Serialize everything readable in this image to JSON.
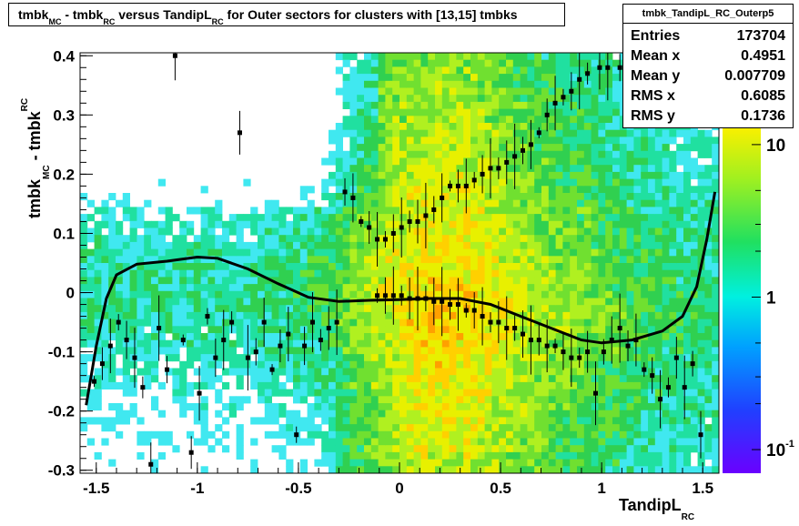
{
  "title": {
    "part1": "tmbk",
    "sub1": "MC",
    "part2": " - tmbk",
    "sub2": "RC",
    "part3": " versus TandipL",
    "sub3": "RC",
    "part4": " for Outer sectors for clusters with [13,15] tmbks"
  },
  "stats": {
    "name": "tmbk_TandipL_RC_Outerp5",
    "rows": [
      {
        "label": "Entries",
        "value": "173704"
      },
      {
        "label": "Mean x",
        "value": "0.4951"
      },
      {
        "label": "Mean y",
        "value": "0.007709"
      },
      {
        "label": "RMS x",
        "value": "0.6085"
      },
      {
        "label": "RMS y",
        "value": "0.1736"
      }
    ]
  },
  "axes": {
    "xlabel": "TandipL",
    "xlabel_sub": "RC",
    "ylabel": "tmbk",
    "ylabel_sub1": "MC",
    "ylabel_mid": " - tmbk",
    "ylabel_sub2": "RC"
  },
  "chart_data": {
    "type": "heatmap",
    "xlim": [
      -1.58,
      1.58
    ],
    "ylim": [
      -0.305,
      0.405
    ],
    "x_ticks": [
      {
        "v": -1.5,
        "label": "-1.5"
      },
      {
        "v": -1.0,
        "label": "-1"
      },
      {
        "v": -0.5,
        "label": "-0.5"
      },
      {
        "v": 0.0,
        "label": "0"
      },
      {
        "v": 0.5,
        "label": "0.5"
      },
      {
        "v": 1.0,
        "label": "1"
      },
      {
        "v": 1.5,
        "label": "1.5"
      }
    ],
    "y_ticks": [
      {
        "v": -0.3,
        "label": "-0.3"
      },
      {
        "v": -0.2,
        "label": "-0.2"
      },
      {
        "v": -0.1,
        "label": "-0.1"
      },
      {
        "v": 0.0,
        "label": "0"
      },
      {
        "v": 0.1,
        "label": "0.1"
      },
      {
        "v": 0.2,
        "label": "0.2"
      },
      {
        "v": 0.3,
        "label": "0.3"
      },
      {
        "v": 0.4,
        "label": "0.4"
      }
    ],
    "z_scale": "log",
    "zlim": [
      0.07,
      40
    ],
    "z_ticks": [
      {
        "v": 10,
        "label": "10"
      },
      {
        "v": 1,
        "label": "1"
      },
      {
        "v": 0.1,
        "label": "10",
        "exp": "-1"
      }
    ],
    "profile": [
      {
        "x": -1.51,
        "y": -0.15
      },
      {
        "x": -1.47,
        "y": -0.12
      },
      {
        "x": -1.43,
        "y": -0.09
      },
      {
        "x": -1.39,
        "y": -0.05
      },
      {
        "x": -1.35,
        "y": -0.08
      },
      {
        "x": -1.31,
        "y": -0.11
      },
      {
        "x": -1.27,
        "y": -0.16
      },
      {
        "x": -1.23,
        "y": -0.29
      },
      {
        "x": -1.19,
        "y": -0.06
      },
      {
        "x": -1.15,
        "y": -0.13
      },
      {
        "x": -1.11,
        "y": 0.4
      },
      {
        "x": -1.07,
        "y": -0.08
      },
      {
        "x": -1.03,
        "y": -0.27
      },
      {
        "x": -0.99,
        "y": -0.17
      },
      {
        "x": -0.95,
        "y": -0.04
      },
      {
        "x": -0.91,
        "y": -0.11
      },
      {
        "x": -0.87,
        "y": -0.08
      },
      {
        "x": -0.83,
        "y": -0.05
      },
      {
        "x": -0.79,
        "y": 0.27
      },
      {
        "x": -0.75,
        "y": -0.11
      },
      {
        "x": -0.71,
        "y": -0.1
      },
      {
        "x": -0.67,
        "y": -0.05
      },
      {
        "x": -0.63,
        "y": -0.13
      },
      {
        "x": -0.59,
        "y": -0.09
      },
      {
        "x": -0.55,
        "y": -0.07
      },
      {
        "x": -0.51,
        "y": -0.24
      },
      {
        "x": -0.47,
        "y": -0.09
      },
      {
        "x": -0.43,
        "y": -0.05
      },
      {
        "x": -0.39,
        "y": -0.08
      },
      {
        "x": -0.35,
        "y": -0.06
      },
      {
        "x": -0.31,
        "y": -0.05
      },
      {
        "x": -0.27,
        "y": 0.17
      },
      {
        "x": -0.23,
        "y": 0.16
      },
      {
        "x": -0.19,
        "y": 0.12
      },
      {
        "x": -0.15,
        "y": 0.11
      },
      {
        "x": -0.11,
        "y": 0.09
      },
      {
        "x": -0.07,
        "y": 0.09
      },
      {
        "x": -0.03,
        "y": 0.1
      },
      {
        "x": 0.01,
        "y": 0.11
      },
      {
        "x": 0.05,
        "y": 0.12
      },
      {
        "x": 0.09,
        "y": 0.12
      },
      {
        "x": 0.13,
        "y": 0.13
      },
      {
        "x": 0.17,
        "y": 0.14
      },
      {
        "x": 0.21,
        "y": 0.16
      },
      {
        "x": 0.25,
        "y": 0.18
      },
      {
        "x": 0.29,
        "y": 0.18
      },
      {
        "x": 0.33,
        "y": 0.18
      },
      {
        "x": 0.37,
        "y": 0.19
      },
      {
        "x": 0.41,
        "y": 0.2
      },
      {
        "x": 0.45,
        "y": 0.21
      },
      {
        "x": 0.49,
        "y": 0.21
      },
      {
        "x": 0.53,
        "y": 0.22
      },
      {
        "x": 0.57,
        "y": 0.23
      },
      {
        "x": 0.61,
        "y": 0.24
      },
      {
        "x": 0.65,
        "y": 0.25
      },
      {
        "x": 0.69,
        "y": 0.27
      },
      {
        "x": 0.73,
        "y": 0.3
      },
      {
        "x": 0.77,
        "y": 0.32
      },
      {
        "x": 0.81,
        "y": 0.33
      },
      {
        "x": 0.85,
        "y": 0.34
      },
      {
        "x": 0.89,
        "y": 0.36
      },
      {
        "x": 0.93,
        "y": 0.37
      },
      {
        "x": 0.99,
        "y": 0.38
      },
      {
        "x": 1.03,
        "y": 0.38
      },
      {
        "x": 1.09,
        "y": 0.38
      }
    ],
    "profile_lower": [
      {
        "x": -0.11,
        "y": -0.005
      },
      {
        "x": -0.07,
        "y": -0.005
      },
      {
        "x": -0.03,
        "y": -0.005
      },
      {
        "x": 0.01,
        "y": -0.005
      },
      {
        "x": 0.05,
        "y": -0.01
      },
      {
        "x": 0.09,
        "y": -0.01
      },
      {
        "x": 0.13,
        "y": -0.01
      },
      {
        "x": 0.17,
        "y": -0.015
      },
      {
        "x": 0.21,
        "y": -0.015
      },
      {
        "x": 0.25,
        "y": -0.02
      },
      {
        "x": 0.29,
        "y": -0.02
      },
      {
        "x": 0.33,
        "y": -0.03
      },
      {
        "x": 0.37,
        "y": -0.03
      },
      {
        "x": 0.41,
        "y": -0.04
      },
      {
        "x": 0.45,
        "y": -0.05
      },
      {
        "x": 0.49,
        "y": -0.05
      },
      {
        "x": 0.53,
        "y": -0.06
      },
      {
        "x": 0.57,
        "y": -0.06
      },
      {
        "x": 0.61,
        "y": -0.07
      },
      {
        "x": 0.65,
        "y": -0.08
      },
      {
        "x": 0.69,
        "y": -0.08
      },
      {
        "x": 0.73,
        "y": -0.09
      },
      {
        "x": 0.77,
        "y": -0.09
      },
      {
        "x": 0.81,
        "y": -0.1
      },
      {
        "x": 0.85,
        "y": -0.11
      },
      {
        "x": 0.89,
        "y": -0.11
      },
      {
        "x": 0.93,
        "y": -0.1
      },
      {
        "x": 0.97,
        "y": -0.17
      },
      {
        "x": 1.01,
        "y": -0.1
      },
      {
        "x": 1.05,
        "y": -0.08
      },
      {
        "x": 1.09,
        "y": -0.06
      },
      {
        "x": 1.13,
        "y": -0.09
      },
      {
        "x": 1.17,
        "y": -0.08
      },
      {
        "x": 1.21,
        "y": -0.13
      },
      {
        "x": 1.25,
        "y": -0.14
      },
      {
        "x": 1.29,
        "y": -0.18
      },
      {
        "x": 1.33,
        "y": -0.16
      },
      {
        "x": 1.37,
        "y": -0.11
      },
      {
        "x": 1.41,
        "y": -0.16
      },
      {
        "x": 1.45,
        "y": -0.12
      },
      {
        "x": 1.49,
        "y": -0.24
      }
    ],
    "fit_curve": [
      {
        "x": -1.55,
        "y": -0.19
      },
      {
        "x": -1.5,
        "y": -0.09
      },
      {
        "x": -1.45,
        "y": -0.01
      },
      {
        "x": -1.4,
        "y": 0.03
      },
      {
        "x": -1.3,
        "y": 0.048
      },
      {
        "x": -1.15,
        "y": 0.053
      },
      {
        "x": -1.0,
        "y": 0.06
      },
      {
        "x": -0.9,
        "y": 0.058
      },
      {
        "x": -0.75,
        "y": 0.04
      },
      {
        "x": -0.6,
        "y": 0.015
      },
      {
        "x": -0.45,
        "y": -0.008
      },
      {
        "x": -0.3,
        "y": -0.015
      },
      {
        "x": -0.15,
        "y": -0.013
      },
      {
        "x": 0.0,
        "y": -0.012
      },
      {
        "x": 0.15,
        "y": -0.01
      },
      {
        "x": 0.3,
        "y": -0.01
      },
      {
        "x": 0.45,
        "y": -0.02
      },
      {
        "x": 0.6,
        "y": -0.04
      },
      {
        "x": 0.75,
        "y": -0.06
      },
      {
        "x": 0.9,
        "y": -0.08
      },
      {
        "x": 1.0,
        "y": -0.085
      },
      {
        "x": 1.15,
        "y": -0.08
      },
      {
        "x": 1.3,
        "y": -0.065
      },
      {
        "x": 1.4,
        "y": -0.04
      },
      {
        "x": 1.47,
        "y": 0.01
      },
      {
        "x": 1.52,
        "y": 0.09
      },
      {
        "x": 1.56,
        "y": 0.17
      }
    ]
  }
}
